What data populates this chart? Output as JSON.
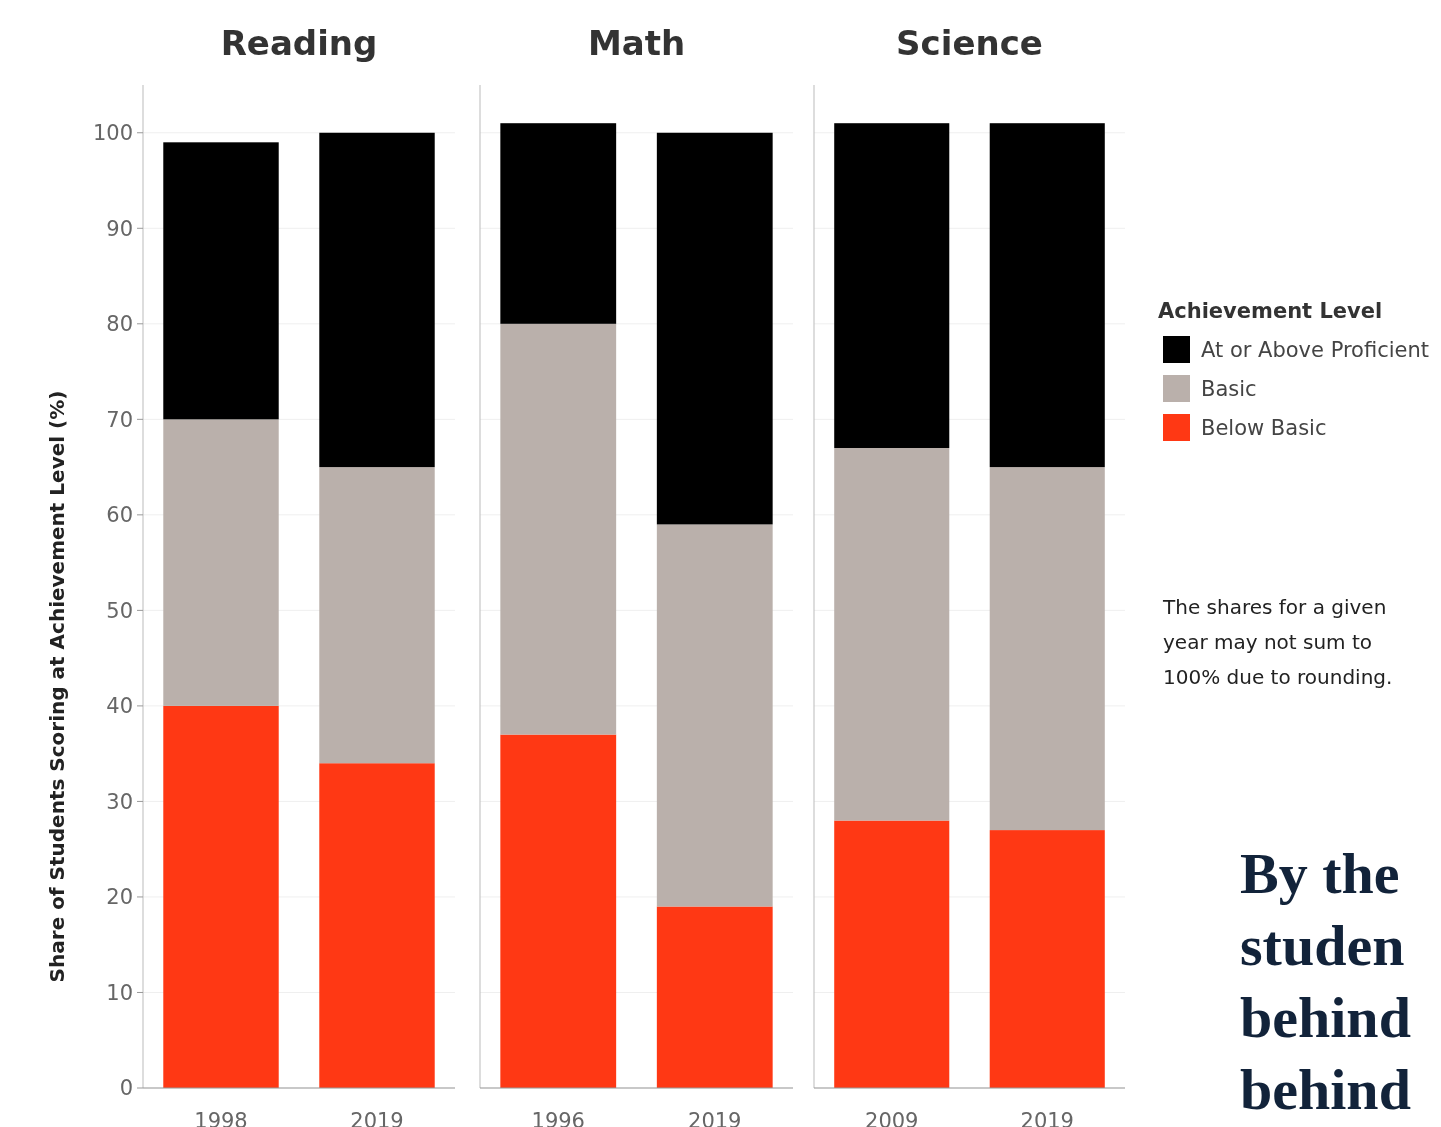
{
  "chart_data": [
    {
      "type": "bar",
      "title": "Reading",
      "ylabel": "Share of Students Scoring at Achievement Level (%)",
      "categories": [
        "1998",
        "2019"
      ],
      "stacked": true,
      "ylim": [
        0,
        105
      ],
      "yticks": [
        0,
        10,
        20,
        30,
        40,
        50,
        60,
        70,
        80,
        90,
        100
      ],
      "grid": "y",
      "series": [
        {
          "color": "#ff3814",
          "values": [
            40,
            34
          ]
        },
        {
          "color": "#bab0ab",
          "values": [
            30,
            31
          ]
        },
        {
          "color": "#000000",
          "values": [
            29,
            35
          ]
        }
      ]
    },
    {
      "type": "bar",
      "title": "Math",
      "categories": [
        "1996",
        "2019"
      ],
      "stacked": true,
      "ylim": [
        0,
        105
      ],
      "yticks": [
        0,
        10,
        20,
        30,
        40,
        50,
        60,
        70,
        80,
        90,
        100
      ],
      "grid": "y",
      "tick_labels": "x",
      "series": [
        {
          "color": "#ff3814",
          "values": [
            37,
            19
          ]
        },
        {
          "color": "#bab0ab",
          "values": [
            43,
            40
          ]
        },
        {
          "color": "#000000",
          "values": [
            21,
            41
          ]
        }
      ]
    },
    {
      "type": "bar",
      "title": "Science",
      "categories": [
        "2009",
        "2019"
      ],
      "stacked": true,
      "ylim": [
        0,
        105
      ],
      "yticks": [
        0,
        10,
        20,
        30,
        40,
        50,
        60,
        70,
        80,
        90,
        100
      ],
      "grid": "y",
      "tick_labels": "x",
      "legend": "right",
      "legend_title": "Achievement Level",
      "annotations": [
        "The shares for a given\nyear may not sum to\n100% due to rounding.",
        "By the\nstuden\nbehind\nbehind"
      ],
      "series": [
        {
          "name": "Below Basic",
          "color": "#ff3814",
          "values": [
            28,
            27
          ]
        },
        {
          "name": "Basic",
          "color": "#bab0ab",
          "values": [
            39,
            38
          ]
        },
        {
          "name": "At or Above Proficient",
          "color": "#000000",
          "values": [
            34,
            36
          ]
        }
      ]
    }
  ]
}
